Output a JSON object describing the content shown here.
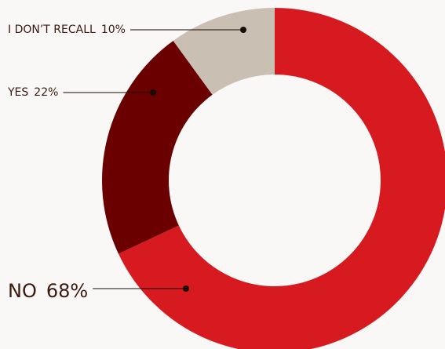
{
  "chart_data": {
    "type": "donut",
    "categories": [
      "NO",
      "YES",
      "I DON’T RECALL"
    ],
    "values": [
      68,
      22,
      10
    ],
    "value_labels": [
      "68%",
      "22%",
      "10%"
    ],
    "colors": [
      "#d71920",
      "#6b0000",
      "#c9bfb3"
    ]
  }
}
